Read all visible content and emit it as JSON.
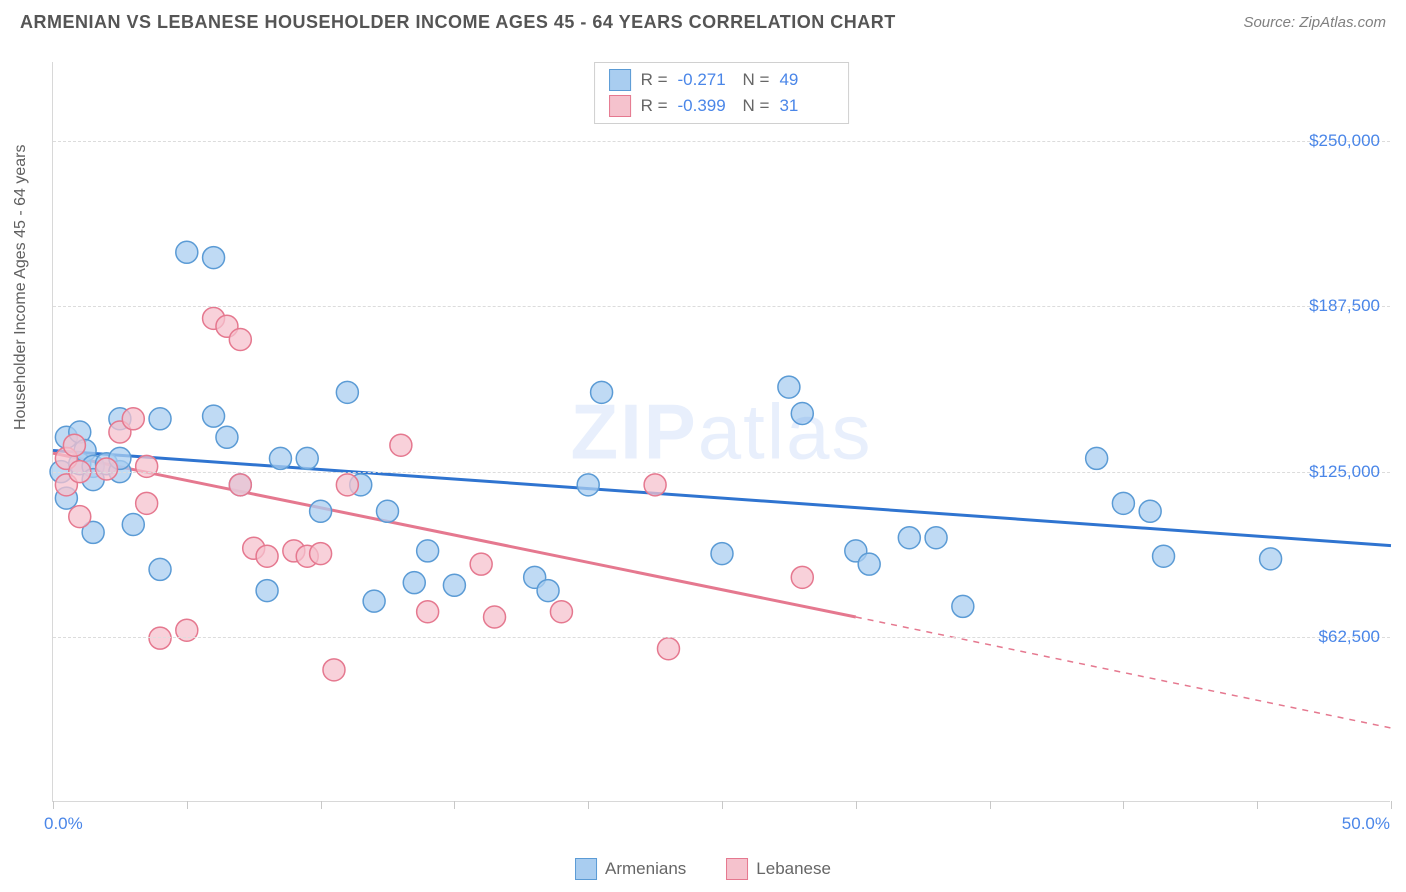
{
  "title": "ARMENIAN VS LEBANESE HOUSEHOLDER INCOME AGES 45 - 64 YEARS CORRELATION CHART",
  "source": "Source: ZipAtlas.com",
  "watermark_a": "ZIP",
  "watermark_b": "atlas",
  "y_axis_title": "Householder Income Ages 45 - 64 years",
  "chart": {
    "type": "scatter",
    "background_color": "#ffffff",
    "grid_color": "#dcdcdc",
    "xlim": [
      0,
      50
    ],
    "ylim": [
      0,
      280000
    ],
    "x_ticks": [
      0,
      5,
      10,
      15,
      20,
      25,
      30,
      35,
      40,
      45,
      50
    ],
    "x_tick_labels": {
      "first": "0.0%",
      "last": "50.0%"
    },
    "y_gridlines": [
      62500,
      125000,
      187500,
      250000
    ],
    "y_tick_labels": [
      "$62,500",
      "$125,000",
      "$187,500",
      "$250,000"
    ],
    "series": [
      {
        "name": "Armenians",
        "fill": "#a9cdf0",
        "stroke": "#5b9bd5",
        "marker_radius": 11,
        "marker_opacity": 0.75,
        "R": "-0.271",
        "N": "49",
        "regression": {
          "x1": 0,
          "y1": 133000,
          "x2": 50,
          "y2": 97000,
          "color": "#2f74d0",
          "width": 3
        },
        "points": [
          [
            0.3,
            125000
          ],
          [
            0.5,
            138000
          ],
          [
            0.5,
            115000
          ],
          [
            1.0,
            140000
          ],
          [
            1.0,
            128000
          ],
          [
            1.2,
            133000
          ],
          [
            1.5,
            127000
          ],
          [
            1.5,
            102000
          ],
          [
            1.5,
            122000
          ],
          [
            2.0,
            128000
          ],
          [
            2.5,
            145000
          ],
          [
            2.5,
            125000
          ],
          [
            2.5,
            130000
          ],
          [
            3.0,
            105000
          ],
          [
            4.0,
            145000
          ],
          [
            4.0,
            88000
          ],
          [
            5.0,
            208000
          ],
          [
            6.0,
            206000
          ],
          [
            6.0,
            146000
          ],
          [
            6.5,
            138000
          ],
          [
            7.0,
            120000
          ],
          [
            8.0,
            80000
          ],
          [
            8.5,
            130000
          ],
          [
            9.5,
            130000
          ],
          [
            10.0,
            110000
          ],
          [
            11.0,
            155000
          ],
          [
            11.5,
            120000
          ],
          [
            12.0,
            76000
          ],
          [
            12.5,
            110000
          ],
          [
            13.5,
            83000
          ],
          [
            14.0,
            95000
          ],
          [
            15.0,
            82000
          ],
          [
            18.0,
            85000
          ],
          [
            18.5,
            80000
          ],
          [
            20.0,
            120000
          ],
          [
            20.5,
            155000
          ],
          [
            25.0,
            94000
          ],
          [
            27.5,
            157000
          ],
          [
            28.0,
            147000
          ],
          [
            30.0,
            95000
          ],
          [
            30.5,
            90000
          ],
          [
            32.0,
            100000
          ],
          [
            33.0,
            100000
          ],
          [
            34.0,
            74000
          ],
          [
            39.0,
            130000
          ],
          [
            40.0,
            113000
          ],
          [
            41.0,
            110000
          ],
          [
            41.5,
            93000
          ],
          [
            45.5,
            92000
          ]
        ]
      },
      {
        "name": "Lebanese",
        "fill": "#f5c2cd",
        "stroke": "#e5788f",
        "marker_radius": 11,
        "marker_opacity": 0.75,
        "R": "-0.399",
        "N": "31",
        "regression": {
          "x1": 0,
          "y1": 132000,
          "x2": 30,
          "y2": 70000,
          "color": "#e5788f",
          "width": 3,
          "dash_ext_x": 50,
          "dash_ext_y": 28000
        },
        "points": [
          [
            0.5,
            130000
          ],
          [
            0.5,
            120000
          ],
          [
            0.8,
            135000
          ],
          [
            1.0,
            125000
          ],
          [
            1.0,
            108000
          ],
          [
            2.0,
            126000
          ],
          [
            2.5,
            140000
          ],
          [
            3.0,
            145000
          ],
          [
            3.5,
            127000
          ],
          [
            3.5,
            113000
          ],
          [
            4.0,
            62000
          ],
          [
            5.0,
            65000
          ],
          [
            6.0,
            183000
          ],
          [
            6.5,
            180000
          ],
          [
            7.0,
            175000
          ],
          [
            7.0,
            120000
          ],
          [
            7.5,
            96000
          ],
          [
            8.0,
            93000
          ],
          [
            9.0,
            95000
          ],
          [
            9.5,
            93000
          ],
          [
            10.0,
            94000
          ],
          [
            10.5,
            50000
          ],
          [
            11.0,
            120000
          ],
          [
            13.0,
            135000
          ],
          [
            14.0,
            72000
          ],
          [
            16.0,
            90000
          ],
          [
            16.5,
            70000
          ],
          [
            19.0,
            72000
          ],
          [
            22.5,
            120000
          ],
          [
            23.0,
            58000
          ],
          [
            28.0,
            85000
          ]
        ]
      }
    ]
  },
  "legend_bottom": [
    {
      "label": "Armenians",
      "fill": "#a9cdf0",
      "stroke": "#5b9bd5"
    },
    {
      "label": "Lebanese",
      "fill": "#f5c2cd",
      "stroke": "#e5788f"
    }
  ]
}
